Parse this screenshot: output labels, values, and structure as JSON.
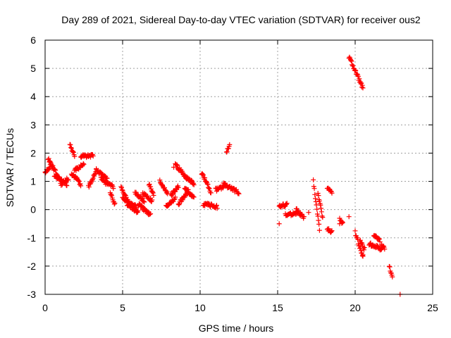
{
  "chart_data": {
    "type": "scatter",
    "title": "Day 289 of 2021, Sidereal Day-to-day VTEC variation (SDTVAR) for receiver ous2",
    "xlabel": "GPS time / hours",
    "ylabel": "SDTVAR / TECUs",
    "xlim": [
      0,
      25
    ],
    "ylim": [
      -3,
      6
    ],
    "xticks": [
      0,
      5,
      10,
      15,
      20,
      25
    ],
    "yticks": [
      -3,
      -2,
      -1,
      0,
      1,
      2,
      3,
      4,
      5,
      6
    ],
    "grid": true,
    "legend": "none",
    "colors": {
      "marker": "#ff0000",
      "grid": "#a0a0a0",
      "frame": "#000000"
    },
    "marker": "plus",
    "segments": [
      {
        "x0": 0.0,
        "x1": 0.4,
        "y0": 1.3,
        "y1": 1.6
      },
      {
        "x0": 0.2,
        "x1": 0.9,
        "y0": 1.8,
        "y1": 1.1
      },
      {
        "x0": 0.6,
        "x1": 1.4,
        "y0": 1.2,
        "y1": 0.9
      },
      {
        "x0": 1.0,
        "x1": 1.5,
        "y0": 0.9,
        "y1": 1.1
      },
      {
        "x0": 1.6,
        "x1": 1.9,
        "y0": 2.3,
        "y1": 1.9
      },
      {
        "x0": 1.7,
        "x1": 2.3,
        "y0": 1.3,
        "y1": 0.9
      },
      {
        "x0": 1.9,
        "x1": 2.5,
        "y0": 1.4,
        "y1": 1.6
      },
      {
        "x0": 2.3,
        "x1": 3.1,
        "y0": 1.9,
        "y1": 1.9
      },
      {
        "x0": 2.8,
        "x1": 3.3,
        "y0": 0.8,
        "y1": 1.4
      },
      {
        "x0": 3.3,
        "x1": 4.0,
        "y0": 1.4,
        "y1": 1.1
      },
      {
        "x0": 3.6,
        "x1": 4.4,
        "y0": 1.1,
        "y1": 0.8
      },
      {
        "x0": 4.2,
        "x1": 4.5,
        "y0": 0.6,
        "y1": 0.2
      },
      {
        "x0": 4.9,
        "x1": 5.4,
        "y0": 0.8,
        "y1": 0.2
      },
      {
        "x0": 5.0,
        "x1": 5.9,
        "y0": 0.4,
        "y1": 0.1
      },
      {
        "x0": 5.3,
        "x1": 6.0,
        "y0": 0.2,
        "y1": -0.1
      },
      {
        "x0": 5.8,
        "x1": 6.4,
        "y0": 0.6,
        "y1": 0.3
      },
      {
        "x0": 6.0,
        "x1": 6.8,
        "y0": 0.2,
        "y1": -0.2
      },
      {
        "x0": 6.3,
        "x1": 6.9,
        "y0": 0.6,
        "y1": 0.3
      },
      {
        "x0": 6.7,
        "x1": 7.0,
        "y0": 0.9,
        "y1": 0.5
      },
      {
        "x0": 7.4,
        "x1": 7.9,
        "y0": 1.0,
        "y1": 0.6
      },
      {
        "x0": 7.8,
        "x1": 8.4,
        "y0": 0.1,
        "y1": 0.4
      },
      {
        "x0": 8.1,
        "x1": 8.6,
        "y0": 0.5,
        "y1": 0.8
      },
      {
        "x0": 8.4,
        "x1": 9.0,
        "y0": 1.6,
        "y1": 1.2
      },
      {
        "x0": 8.6,
        "x1": 9.2,
        "y0": 0.2,
        "y1": 0.6
      },
      {
        "x0": 9.0,
        "x1": 9.6,
        "y0": 0.8,
        "y1": 0.4
      },
      {
        "x0": 9.0,
        "x1": 9.6,
        "y0": 1.2,
        "y1": 0.9
      },
      {
        "x0": 10.1,
        "x1": 10.7,
        "y0": 1.3,
        "y1": 0.6
      },
      {
        "x0": 10.2,
        "x1": 11.1,
        "y0": 0.2,
        "y1": 0.1
      },
      {
        "x0": 11.0,
        "x1": 11.5,
        "y0": 0.7,
        "y1": 0.8
      },
      {
        "x0": 11.7,
        "x1": 11.9,
        "y0": 2.0,
        "y1": 2.3
      },
      {
        "x0": 11.5,
        "x1": 12.5,
        "y0": 0.9,
        "y1": 0.6
      },
      {
        "x0": 15.1,
        "x1": 15.6,
        "y0": 0.1,
        "y1": 0.2
      },
      {
        "x0": 15.5,
        "x1": 16.3,
        "y0": -0.2,
        "y1": -0.1
      },
      {
        "x0": 16.2,
        "x1": 16.7,
        "y0": 0.0,
        "y1": -0.3
      },
      {
        "x0": 17.3,
        "x1": 17.7,
        "y0": 1.0,
        "y1": -0.7
      },
      {
        "x0": 17.6,
        "x1": 17.9,
        "y0": 0.6,
        "y1": -0.3
      },
      {
        "x0": 18.2,
        "x1": 18.5,
        "y0": 0.8,
        "y1": 0.6
      },
      {
        "x0": 18.2,
        "x1": 18.5,
        "y0": -0.7,
        "y1": -0.8
      },
      {
        "x0": 19.0,
        "x1": 19.2,
        "y0": -0.3,
        "y1": -0.5
      },
      {
        "x0": 19.6,
        "x1": 20.5,
        "y0": 5.4,
        "y1": 4.3
      },
      {
        "x0": 20.0,
        "x1": 20.5,
        "y0": -0.8,
        "y1": -1.7
      },
      {
        "x0": 20.3,
        "x1": 20.6,
        "y0": -1.1,
        "y1": -1.4
      },
      {
        "x0": 20.9,
        "x1": 21.7,
        "y0": -1.2,
        "y1": -1.4
      },
      {
        "x0": 21.2,
        "x1": 21.6,
        "y0": -0.9,
        "y1": -1.1
      },
      {
        "x0": 21.7,
        "x1": 21.9,
        "y0": -1.2,
        "y1": -1.4
      },
      {
        "x0": 22.2,
        "x1": 22.4,
        "y0": -2.0,
        "y1": -2.4
      }
    ],
    "points": [
      {
        "x": 15.1,
        "y": -0.5
      },
      {
        "x": 19.0,
        "y": -0.5
      },
      {
        "x": 19.6,
        "y": -0.25
      },
      {
        "x": 20.5,
        "y": -1.6
      },
      {
        "x": 22.9,
        "y": -3.0
      },
      {
        "x": 17.0,
        "y": -0.1
      },
      {
        "x": 8.3,
        "y": 1.5
      },
      {
        "x": 3.9,
        "y": 0.9
      }
    ]
  }
}
